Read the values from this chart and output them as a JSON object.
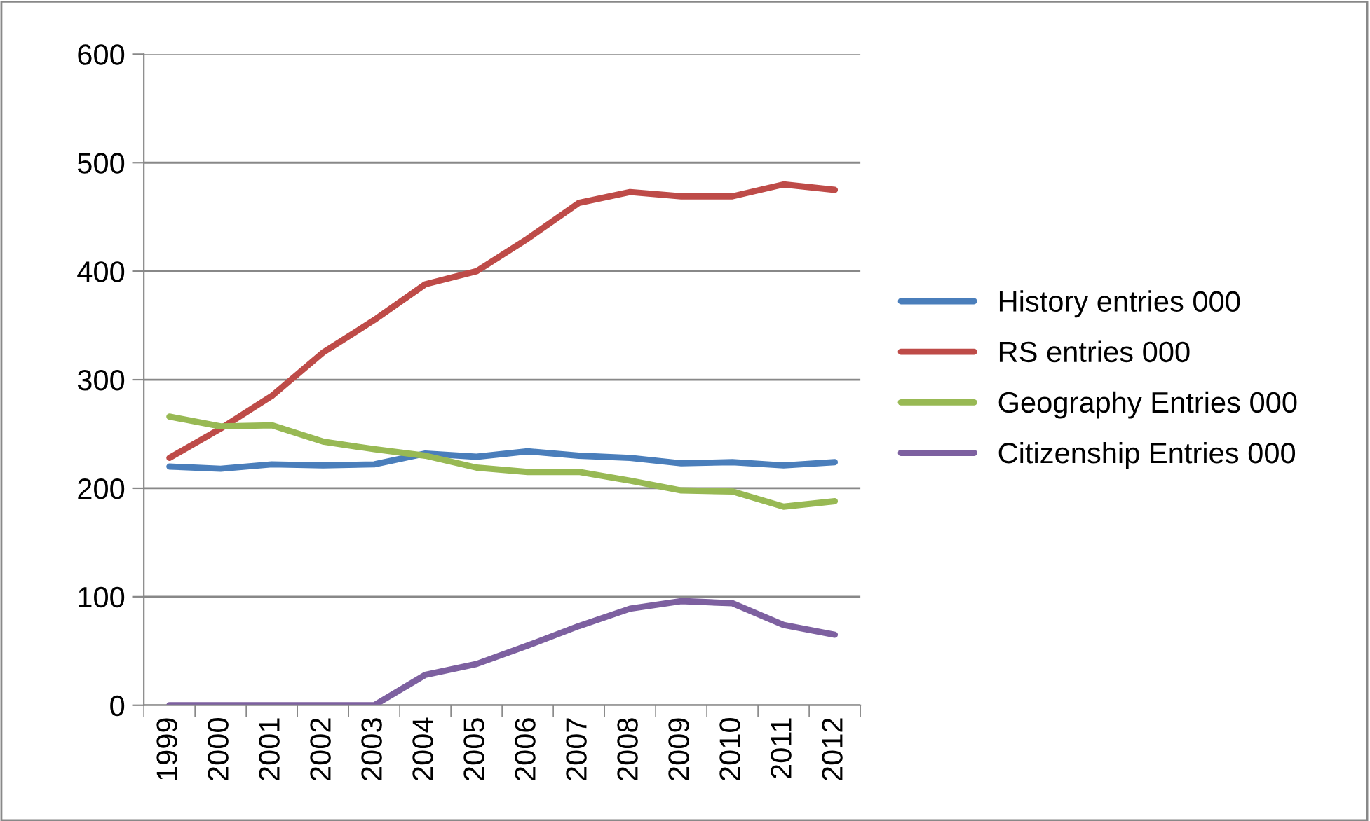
{
  "chart_data": {
    "type": "line",
    "categories": [
      "1999",
      "2000",
      "2001",
      "2002",
      "2003",
      "2004",
      "2005",
      "2006",
      "2007",
      "2008",
      "2009",
      "2010",
      "2011",
      "2012"
    ],
    "series": [
      {
        "name": "History entries 000",
        "color": "#4a7ebb",
        "values": [
          220,
          218,
          222,
          221,
          222,
          232,
          229,
          234,
          230,
          228,
          223,
          224,
          221,
          224
        ]
      },
      {
        "name": "RS entries 000",
        "color": "#be4b48",
        "values": [
          228,
          255,
          285,
          325,
          355,
          388,
          400,
          430,
          463,
          473,
          469,
          469,
          480,
          475
        ]
      },
      {
        "name": "Geography Entries 000",
        "color": "#98b954",
        "values": [
          266,
          257,
          258,
          243,
          236,
          230,
          219,
          215,
          215,
          207,
          198,
          197,
          183,
          188
        ]
      },
      {
        "name": "Citizenship Entries 000",
        "color": "#7d60a0",
        "values": [
          0,
          0,
          0,
          0,
          0,
          28,
          38,
          55,
          73,
          89,
          96,
          94,
          74,
          65
        ]
      }
    ],
    "ylim": [
      0,
      600
    ],
    "yticks": [
      0,
      100,
      200,
      300,
      400,
      500,
      600
    ],
    "grid": "y",
    "legend": "right",
    "marker": "none",
    "line_style": "solid"
  }
}
